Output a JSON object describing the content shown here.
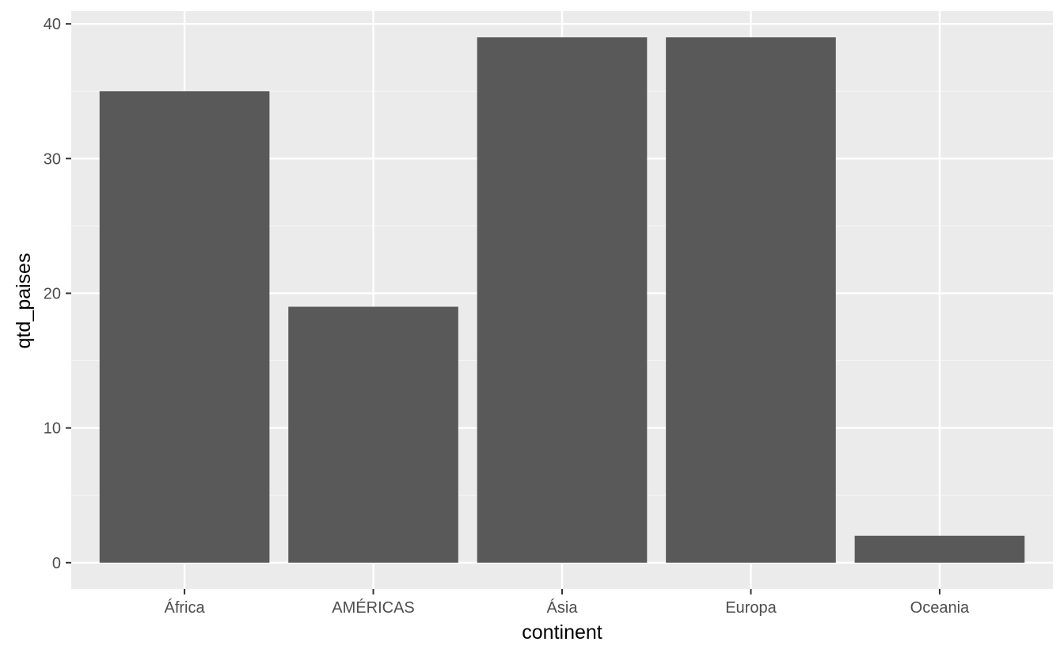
{
  "chart_data": {
    "type": "bar",
    "title": "",
    "xlabel": "continent",
    "ylabel": "qtd_paises",
    "categories": [
      "África",
      "AMÉRICAS",
      "Ásia",
      "Europa",
      "Oceania"
    ],
    "values": [
      35,
      19,
      39,
      39,
      2
    ],
    "ylim": [
      -1.95,
      40.95
    ],
    "yticks": [
      0,
      10,
      20,
      30,
      40
    ],
    "grid": true,
    "legend": "none",
    "colors": {
      "bar": "#595959",
      "panel": "#ebebeb",
      "grid_major": "#ffffff",
      "grid_minor": "#f5f5f5",
      "tick_text": "#4d4d4d",
      "tick_mark": "#333333",
      "axis_title": "#000000"
    }
  }
}
